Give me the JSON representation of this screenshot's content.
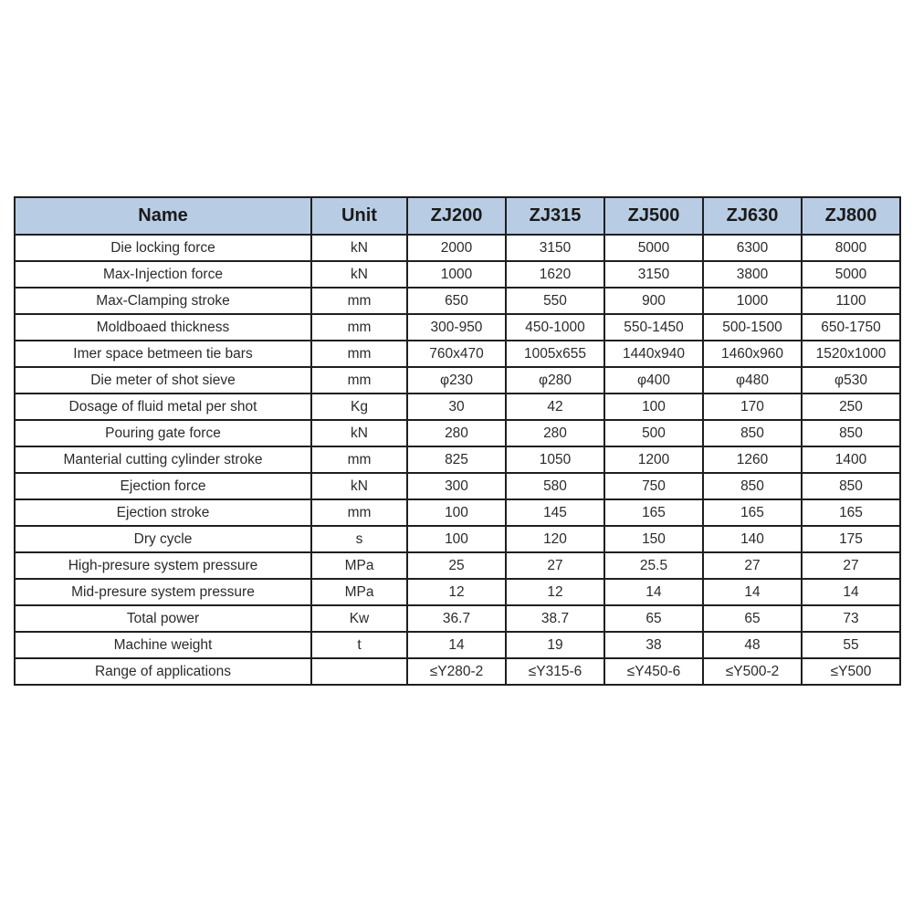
{
  "colors": {
    "page_bg": "#FFFFFF",
    "header_bg": "#B8CCE4",
    "border": "#1F1F1F",
    "header_text": "#1A1A1A",
    "cell_text": "#2B2B2B"
  },
  "chart_data": {
    "type": "table",
    "title": "",
    "columns": [
      "Name",
      "Unit",
      "ZJ200",
      "ZJ315",
      "ZJ500",
      "ZJ630",
      "ZJ800"
    ],
    "rows": [
      [
        "Die locking force",
        "kN",
        "2000",
        "3150",
        "5000",
        "6300",
        "8000"
      ],
      [
        "Max-Injection force",
        "kN",
        "1000",
        "1620",
        "3150",
        "3800",
        "5000"
      ],
      [
        "Max-Clamping stroke",
        "mm",
        "650",
        "550",
        "900",
        "1000",
        "1100"
      ],
      [
        "Moldboaed thickness",
        "mm",
        "300-950",
        "450-1000",
        "550-1450",
        "500-1500",
        "650-1750"
      ],
      [
        "Imer space betmeen tie bars",
        "mm",
        "760x470",
        "1005x655",
        "1440x940",
        "1460x960",
        "1520x1000"
      ],
      [
        "Die meter of shot sieve",
        "mm",
        "φ230",
        "φ280",
        "φ400",
        "φ480",
        "φ530"
      ],
      [
        "Dosage of fluid metal per shot",
        "Kg",
        "30",
        "42",
        "100",
        "170",
        "250"
      ],
      [
        "Pouring gate force",
        "kN",
        "280",
        "280",
        "500",
        "850",
        "850"
      ],
      [
        "Manterial cutting cylinder stroke",
        "mm",
        "825",
        "1050",
        "1200",
        "1260",
        "1400"
      ],
      [
        "Ejection force",
        "kN",
        "300",
        "580",
        "750",
        "850",
        "850"
      ],
      [
        "Ejection stroke",
        "mm",
        "100",
        "145",
        "165",
        "165",
        "165"
      ],
      [
        "Dry cycle",
        "s",
        "100",
        "120",
        "150",
        "140",
        "175"
      ],
      [
        "High-presure system pressure",
        "MPa",
        "25",
        "27",
        "25.5",
        "27",
        "27"
      ],
      [
        "Mid-presure system pressure",
        "MPa",
        "12",
        "12",
        "14",
        "14",
        "14"
      ],
      [
        "Total power",
        "Kw",
        "36.7",
        "38.7",
        "65",
        "65",
        "73"
      ],
      [
        "Machine weight",
        "t",
        "14",
        "19",
        "38",
        "48",
        "55"
      ],
      [
        "Range of applications",
        "",
        "≤Y280-2",
        "≤Y315-6",
        "≤Y450-6",
        "≤Y500-2",
        "≤Y500"
      ]
    ]
  }
}
